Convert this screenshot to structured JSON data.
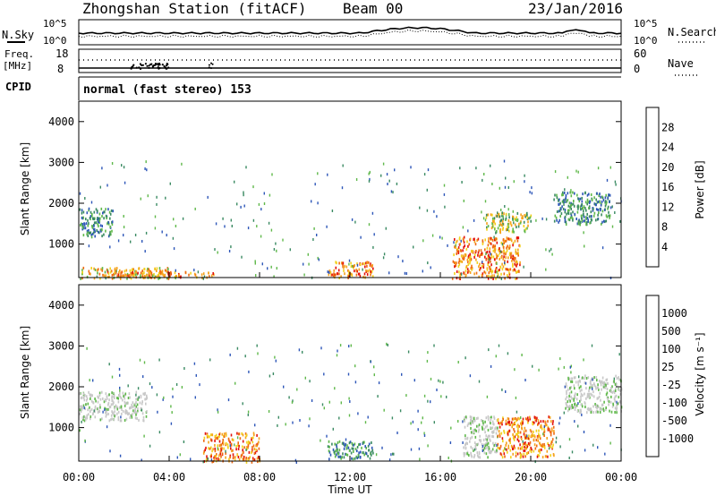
{
  "header": {
    "station": "Zhongshan Station (fitACF)",
    "beam": "Beam 00",
    "date": "23/Jan/2016"
  },
  "panels": {
    "noise": {
      "left_label": "N.Sky",
      "right_label": "N.Search",
      "tick_top_left": "10^5",
      "tick_bottom_left": "10^0",
      "tick_top_right": "10^5",
      "tick_bottom_right": "10^0"
    },
    "freq": {
      "label_line1": "Freq.",
      "label_line2": "[MHz]",
      "tick_top": "18",
      "tick_bottom": "8",
      "right_label": "Nave",
      "right_tick_top": "60",
      "right_tick_bottom": "0"
    },
    "cpid": {
      "label": "CPID",
      "text": "normal (fast stereo) 153"
    }
  },
  "power_colorbar": {
    "label": "Power [dB]",
    "ticks": [
      "4",
      "8",
      "12",
      "16",
      "20",
      "24",
      "28"
    ],
    "colors": [
      "#1a1aff",
      "#2d56b8",
      "#3a8a62",
      "#5fb84a",
      "#f2d21e",
      "#f5a21e",
      "#ef6a12",
      "#e3120b"
    ]
  },
  "velocity_colorbar": {
    "label": "Velocity [m s⁻¹]",
    "ticks": [
      "1000",
      "500",
      "100",
      "25",
      "-25",
      "-100",
      "-500",
      "-1000"
    ],
    "colors": [
      "#1a1aff",
      "#2d56b8",
      "#3a8a62",
      "#5fb84a",
      "#c8c8c8",
      "#f2d21e",
      "#f5a21e",
      "#ef6a12",
      "#e3120b"
    ]
  },
  "chart_data": [
    {
      "type": "heatmap",
      "title": "Power",
      "ylabel": "Slant Range [km]",
      "ylim": [
        180,
        4500
      ],
      "yticks": [
        "1000",
        "2000",
        "3000",
        "4000"
      ],
      "colorbar_label": "Power [dB]",
      "regions": [
        {
          "t": [
            0,
            4
          ],
          "r": [
            180,
            450
          ],
          "level": "high"
        },
        {
          "t": [
            1,
            6
          ],
          "r": [
            200,
            350
          ],
          "level": "very high"
        },
        {
          "t": [
            0,
            1.5
          ],
          "r": [
            1200,
            1900
          ],
          "level": "low"
        },
        {
          "t": [
            11,
            13
          ],
          "r": [
            200,
            600
          ],
          "level": "very high"
        },
        {
          "t": [
            16.5,
            19.5
          ],
          "r": [
            180,
            1200
          ],
          "level": "very high"
        },
        {
          "t": [
            18,
            20
          ],
          "r": [
            1300,
            1800
          ],
          "level": "medium"
        },
        {
          "t": [
            21,
            23.5
          ],
          "r": [
            1500,
            2300
          ],
          "level": "low"
        }
      ]
    },
    {
      "type": "heatmap",
      "title": "Velocity",
      "ylabel": "Slant Range [km]",
      "ylim": [
        180,
        4500
      ],
      "yticks": [
        "1000",
        "2000",
        "3000",
        "4000"
      ],
      "xlabel": "Time UT",
      "xticks": [
        "00:00",
        "04:00",
        "08:00",
        "12:00",
        "16:00",
        "20:00",
        "00:00"
      ],
      "colorbar_label": "Velocity [m s⁻¹]",
      "regions": [
        {
          "t": [
            0,
            3
          ],
          "r": [
            1200,
            1900
          ],
          "level": "near zero"
        },
        {
          "t": [
            5.5,
            8
          ],
          "r": [
            180,
            900
          ],
          "level": "negative"
        },
        {
          "t": [
            11,
            13
          ],
          "r": [
            250,
            700
          ],
          "level": "positive"
        },
        {
          "t": [
            17,
            18.5
          ],
          "r": [
            300,
            1300
          ],
          "level": "near zero"
        },
        {
          "t": [
            18.5,
            21
          ],
          "r": [
            300,
            1300
          ],
          "level": "negative"
        },
        {
          "t": [
            21.5,
            24
          ],
          "r": [
            1400,
            2300
          ],
          "level": "near zero"
        }
      ]
    }
  ]
}
